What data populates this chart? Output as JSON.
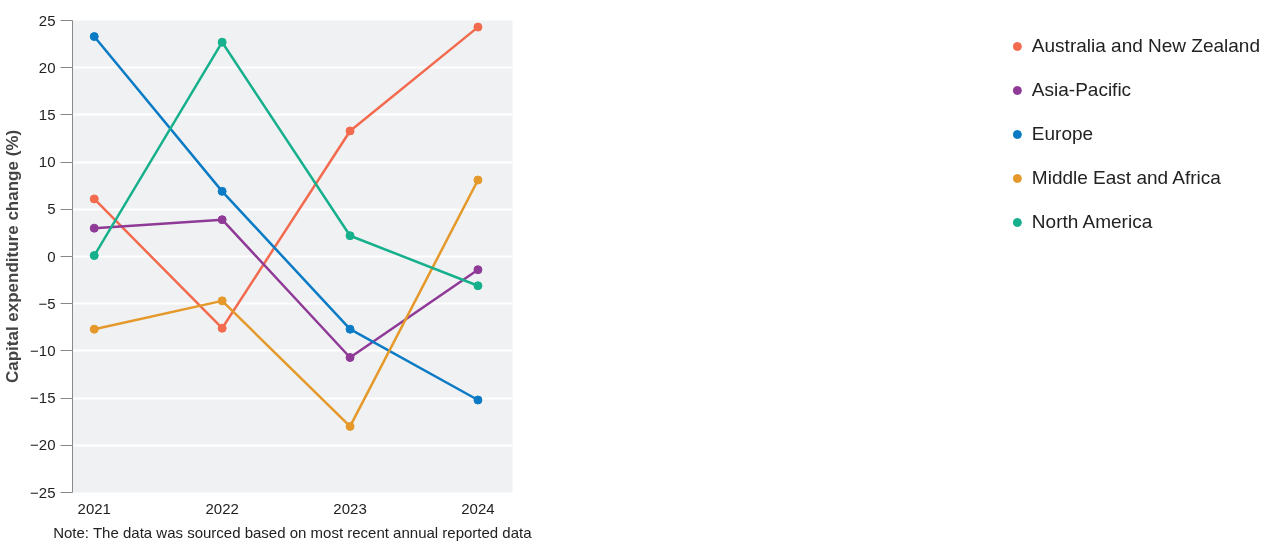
{
  "chart_data": {
    "type": "line",
    "ylabel": "Capital expenditure change (%)",
    "categories": [
      "2021",
      "2022",
      "2023",
      "2024"
    ],
    "series": [
      {
        "name": "Australia and New Zealand",
        "color": "#f26b4f",
        "values": [
          6.1,
          -7.6,
          13.3,
          24.3
        ]
      },
      {
        "name": "Asia-Pacific",
        "color": "#8e3a96",
        "values": [
          3.0,
          3.9,
          -10.7,
          -1.4
        ]
      },
      {
        "name": "Europe",
        "color": "#0a7bc4",
        "values": [
          23.3,
          6.9,
          -7.7,
          -15.2
        ]
      },
      {
        "name": "Middle East and Africa",
        "color": "#e4992a",
        "values": [
          -7.7,
          -4.7,
          -18.0,
          8.1
        ]
      },
      {
        "name": "North America",
        "color": "#16b08c",
        "values": [
          0.1,
          22.7,
          2.2,
          -3.1
        ]
      }
    ],
    "ylim": [
      -25,
      25
    ],
    "yticks": [
      -25,
      -20,
      -15,
      -10,
      -5,
      0,
      5,
      10,
      15,
      20,
      25
    ],
    "grid": "y",
    "legend": "right",
    "marker": "circle",
    "line_style": "solid",
    "annotations": [
      "Note: The data was sourced based on most recent annual reported data"
    ]
  }
}
